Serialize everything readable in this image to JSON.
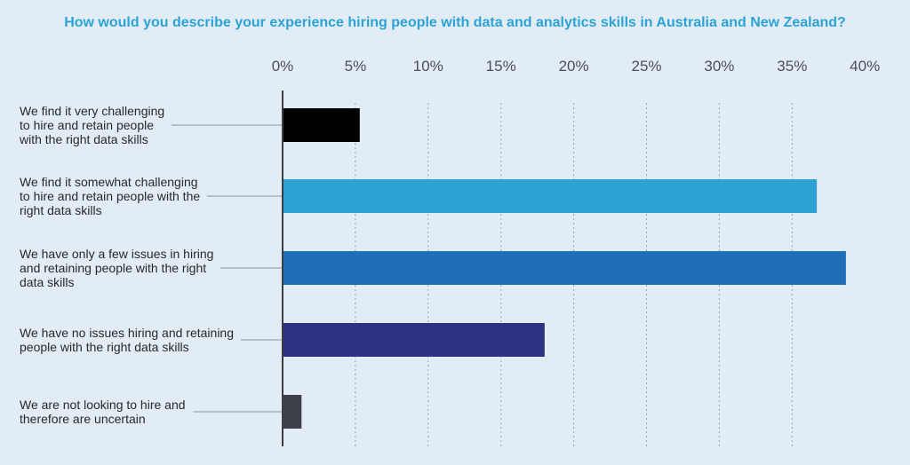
{
  "chart_data": {
    "type": "bar",
    "orientation": "horizontal",
    "title": "How would you describe your experience hiring people with data and analytics skills in Australia and New Zealand?",
    "categories": [
      "We find it very challenging to hire and retain people with the right data skills",
      "We find it somewhat challenging to hire and retain people with the right data skills",
      "We have only a few issues in hiring and retaining people with the right data skills",
      "We have no issues hiring and retaining people with the right data skills",
      "We are not looking to hire and therefore are uncertain"
    ],
    "category_lines": [
      [
        "We find it very challenging",
        "to hire and retain people",
        "with the right data skills"
      ],
      [
        "We find it somewhat challenging",
        "to hire and retain people with the",
        "right data skills"
      ],
      [
        "We have only a few issues in hiring",
        "and retaining people with the right",
        "data skills"
      ],
      [
        "We have no issues hiring and retaining",
        "people with the right data skills"
      ],
      [
        "We are not looking to hire and",
        "therefore are uncertain"
      ]
    ],
    "values": [
      5.3,
      36.7,
      38.7,
      18.0,
      1.3
    ],
    "colors": [
      "#000000",
      "#2ea3d3",
      "#1f6fb6",
      "#2e3282",
      "#3d4048"
    ],
    "xlim": [
      0,
      40
    ],
    "xticks": [
      0,
      5,
      10,
      15,
      20,
      25,
      30,
      35,
      40
    ],
    "xtick_labels": [
      "0%",
      "5%",
      "10%",
      "15%",
      "20%",
      "25%",
      "30%",
      "35%",
      "40%"
    ],
    "grid": true,
    "xlabel": "",
    "ylabel": ""
  }
}
